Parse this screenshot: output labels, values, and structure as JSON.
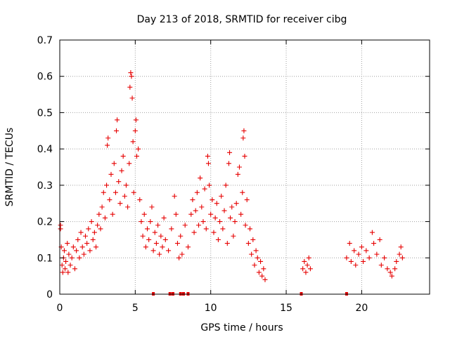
{
  "chart_data": {
    "type": "scatter",
    "title": "Day 213 of 2018, SRMTID for receiver cibg",
    "xlabel": "GPS time / hours",
    "ylabel": "SRMTID / TECUs",
    "xlim": [
      0,
      24.5
    ],
    "ylim": [
      0,
      0.7
    ],
    "xticks": [
      0,
      5,
      10,
      15,
      20
    ],
    "yticks": [
      0,
      0.1,
      0.2,
      0.3,
      0.4,
      0.5,
      0.6,
      0.7
    ],
    "ytick_labels": [
      "0",
      "0.1",
      "0.2",
      "0.3",
      "0.4",
      "0.5",
      "0.6",
      "0.7"
    ],
    "grid": true,
    "marker": "+",
    "color": "#e60000",
    "series": [
      {
        "name": "SRMTID",
        "points": [
          [
            0.05,
            0.18
          ],
          [
            0.05,
            0.19
          ],
          [
            0.1,
            0.13
          ],
          [
            0.15,
            0.08
          ],
          [
            0.2,
            0.06
          ],
          [
            0.25,
            0.1
          ],
          [
            0.3,
            0.12
          ],
          [
            0.35,
            0.07
          ],
          [
            0.4,
            0.09
          ],
          [
            0.5,
            0.14
          ],
          [
            0.55,
            0.06
          ],
          [
            0.6,
            0.11
          ],
          [
            0.7,
            0.08
          ],
          [
            0.8,
            0.1
          ],
          [
            0.9,
            0.13
          ],
          [
            1.0,
            0.07
          ],
          [
            1.1,
            0.12
          ],
          [
            1.2,
            0.15
          ],
          [
            1.3,
            0.1
          ],
          [
            1.4,
            0.17
          ],
          [
            1.5,
            0.13
          ],
          [
            1.6,
            0.11
          ],
          [
            1.7,
            0.16
          ],
          [
            1.8,
            0.14
          ],
          [
            1.9,
            0.18
          ],
          [
            2.0,
            0.12
          ],
          [
            2.1,
            0.2
          ],
          [
            2.2,
            0.15
          ],
          [
            2.3,
            0.17
          ],
          [
            2.4,
            0.13
          ],
          [
            2.5,
            0.19
          ],
          [
            2.6,
            0.22
          ],
          [
            2.7,
            0.18
          ],
          [
            2.8,
            0.24
          ],
          [
            2.9,
            0.28
          ],
          [
            3.0,
            0.21
          ],
          [
            3.1,
            0.3
          ],
          [
            3.15,
            0.41
          ],
          [
            3.2,
            0.43
          ],
          [
            3.3,
            0.26
          ],
          [
            3.4,
            0.33
          ],
          [
            3.5,
            0.22
          ],
          [
            3.6,
            0.36
          ],
          [
            3.7,
            0.28
          ],
          [
            3.75,
            0.45
          ],
          [
            3.8,
            0.48
          ],
          [
            3.9,
            0.31
          ],
          [
            4.0,
            0.25
          ],
          [
            4.1,
            0.34
          ],
          [
            4.2,
            0.38
          ],
          [
            4.3,
            0.27
          ],
          [
            4.4,
            0.3
          ],
          [
            4.5,
            0.24
          ],
          [
            4.6,
            0.36
          ],
          [
            4.65,
            0.57
          ],
          [
            4.7,
            0.61
          ],
          [
            4.75,
            0.6
          ],
          [
            4.8,
            0.54
          ],
          [
            4.85,
            0.42
          ],
          [
            4.9,
            0.28
          ],
          [
            5.0,
            0.45
          ],
          [
            5.05,
            0.48
          ],
          [
            5.1,
            0.38
          ],
          [
            5.2,
            0.4
          ],
          [
            5.3,
            0.26
          ],
          [
            5.4,
            0.2
          ],
          [
            5.5,
            0.16
          ],
          [
            5.6,
            0.22
          ],
          [
            5.7,
            0.13
          ],
          [
            5.8,
            0.18
          ],
          [
            5.9,
            0.15
          ],
          [
            6.0,
            0.2
          ],
          [
            6.1,
            0.24
          ],
          [
            6.2,
            0.12
          ],
          [
            6.3,
            0.17
          ],
          [
            6.4,
            0.14
          ],
          [
            6.5,
            0.19
          ],
          [
            6.6,
            0.11
          ],
          [
            6.7,
            0.16
          ],
          [
            6.8,
            0.13
          ],
          [
            6.9,
            0.21
          ],
          [
            7.0,
            0.15
          ],
          [
            7.2,
            0.12
          ],
          [
            7.4,
            0.18
          ],
          [
            7.6,
            0.27
          ],
          [
            7.7,
            0.22
          ],
          [
            7.8,
            0.14
          ],
          [
            7.9,
            0.1
          ],
          [
            8.0,
            0.16
          ],
          [
            8.1,
            0.11
          ],
          [
            8.3,
            0.19
          ],
          [
            8.5,
            0.13
          ],
          [
            8.7,
            0.22
          ],
          [
            8.8,
            0.26
          ],
          [
            8.9,
            0.17
          ],
          [
            9.0,
            0.23
          ],
          [
            9.1,
            0.28
          ],
          [
            9.2,
            0.19
          ],
          [
            9.3,
            0.32
          ],
          [
            9.4,
            0.24
          ],
          [
            9.5,
            0.2
          ],
          [
            9.6,
            0.29
          ],
          [
            9.7,
            0.18
          ],
          [
            9.8,
            0.38
          ],
          [
            9.85,
            0.36
          ],
          [
            9.9,
            0.3
          ],
          [
            10.0,
            0.22
          ],
          [
            10.1,
            0.26
          ],
          [
            10.2,
            0.17
          ],
          [
            10.3,
            0.21
          ],
          [
            10.4,
            0.25
          ],
          [
            10.5,
            0.15
          ],
          [
            10.6,
            0.2
          ],
          [
            10.7,
            0.27
          ],
          [
            10.8,
            0.18
          ],
          [
            10.9,
            0.23
          ],
          [
            11.0,
            0.3
          ],
          [
            11.1,
            0.14
          ],
          [
            11.2,
            0.36
          ],
          [
            11.25,
            0.39
          ],
          [
            11.3,
            0.21
          ],
          [
            11.4,
            0.24
          ],
          [
            11.5,
            0.16
          ],
          [
            11.6,
            0.2
          ],
          [
            11.7,
            0.25
          ],
          [
            11.8,
            0.33
          ],
          [
            11.9,
            0.35
          ],
          [
            12.0,
            0.22
          ],
          [
            12.1,
            0.28
          ],
          [
            12.15,
            0.43
          ],
          [
            12.2,
            0.45
          ],
          [
            12.25,
            0.38
          ],
          [
            12.3,
            0.19
          ],
          [
            12.4,
            0.26
          ],
          [
            12.5,
            0.14
          ],
          [
            12.6,
            0.18
          ],
          [
            12.7,
            0.11
          ],
          [
            12.8,
            0.15
          ],
          [
            12.9,
            0.08
          ],
          [
            13.0,
            0.12
          ],
          [
            13.1,
            0.1
          ],
          [
            13.2,
            0.06
          ],
          [
            13.3,
            0.09
          ],
          [
            13.4,
            0.05
          ],
          [
            13.5,
            0.07
          ],
          [
            13.6,
            0.04
          ],
          [
            16.1,
            0.07
          ],
          [
            16.2,
            0.09
          ],
          [
            16.3,
            0.06
          ],
          [
            16.4,
            0.08
          ],
          [
            16.5,
            0.1
          ],
          [
            16.6,
            0.07
          ],
          [
            19.0,
            0.1
          ],
          [
            19.2,
            0.14
          ],
          [
            19.3,
            0.09
          ],
          [
            19.5,
            0.12
          ],
          [
            19.6,
            0.08
          ],
          [
            19.8,
            0.11
          ],
          [
            20.0,
            0.13
          ],
          [
            20.1,
            0.09
          ],
          [
            20.3,
            0.12
          ],
          [
            20.5,
            0.1
          ],
          [
            20.7,
            0.17
          ],
          [
            20.8,
            0.14
          ],
          [
            21.0,
            0.11
          ],
          [
            21.2,
            0.15
          ],
          [
            21.3,
            0.08
          ],
          [
            21.5,
            0.1
          ],
          [
            21.7,
            0.07
          ],
          [
            21.9,
            0.06
          ],
          [
            22.0,
            0.05
          ],
          [
            22.2,
            0.07
          ],
          [
            22.3,
            0.09
          ],
          [
            22.5,
            0.11
          ],
          [
            22.6,
            0.13
          ],
          [
            22.7,
            0.1
          ]
        ]
      }
    ],
    "zero_markers": [
      6.2,
      7.3,
      7.5,
      8.0,
      8.2,
      8.5,
      16.0,
      19.0
    ]
  }
}
